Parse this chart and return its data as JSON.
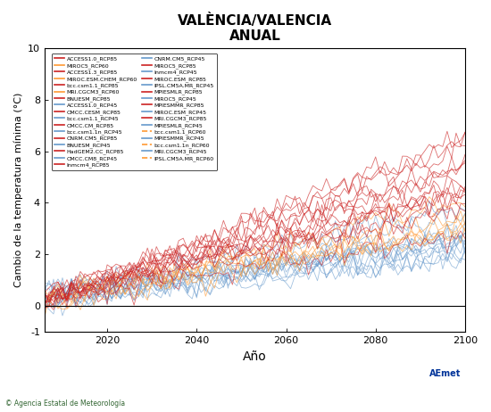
{
  "title": "VALÈNCIA/VALENCIA",
  "subtitle": "ANUAL",
  "xlabel": "Año",
  "ylabel": "Cambio de la temperatura mínima (°C)",
  "xlim": [
    2006,
    2100
  ],
  "ylim": [
    -1,
    10
  ],
  "yticks": [
    -1,
    0,
    2,
    4,
    6,
    8,
    10
  ],
  "xticks": [
    2020,
    2040,
    2060,
    2080,
    2100
  ],
  "rcp85_color": "#CC2222",
  "rcp60_color": "#FF9933",
  "rcp45_color": "#6699CC",
  "background": "#FFFFFF",
  "legend_rcp85": [
    "ACCESS1.0_RCP85",
    "ACCESS1.3_RCP85",
    "bcc.csm1.1_RCP85",
    "BNUESM_RCP85",
    "CMCC.CESM_RCP85",
    "CMCC.CM_RCP85",
    "CNRM.CM5_RCP85",
    "HadGEM2.CC_RCP85",
    "Inmcm4_RCP85",
    "MIROC5_RCP85",
    "MIROC.ESM_RCP85",
    "MPIESMLR_RCP85",
    "MPIESMMR_RCP85",
    "MRI.CGCM3_RCP85"
  ],
  "legend_rcp60_left": [
    "bcc.csm1.1_RCP60",
    "bcc.csm1.1n_RCP60",
    "IPSL.CM5A.MR_RCP60"
  ],
  "legend_rcp60_right": [
    "MIROC5_RCP60",
    "MIROC.ESM.CHEM_RCP60",
    "MRI.CGCM3_RCP60"
  ],
  "legend_rcp45": [
    "ACCESS1.0_RCP45",
    "bcc.csm1.1_RCP45",
    "bcc.csm1.1n_RCP45",
    "BNUESM_RCP45",
    "CMCC.CM8_RCP45",
    "CNRM.CM5_RCP45",
    "Inmcm4_RCP45",
    "IPSL.CM5A.MR_RCP45",
    "MIROC5_RCP45",
    "MIROC.ESM_RCP45",
    "MPIESMLR_RCP45",
    "MPIESMMR_RCP45",
    "MRI.CGCM3_RCP45"
  ],
  "n_rcp85": 14,
  "n_rcp60": 6,
  "n_rcp45": 13,
  "seed": 42,
  "copyright_text": "© Agencia Estatal de Meteorología"
}
